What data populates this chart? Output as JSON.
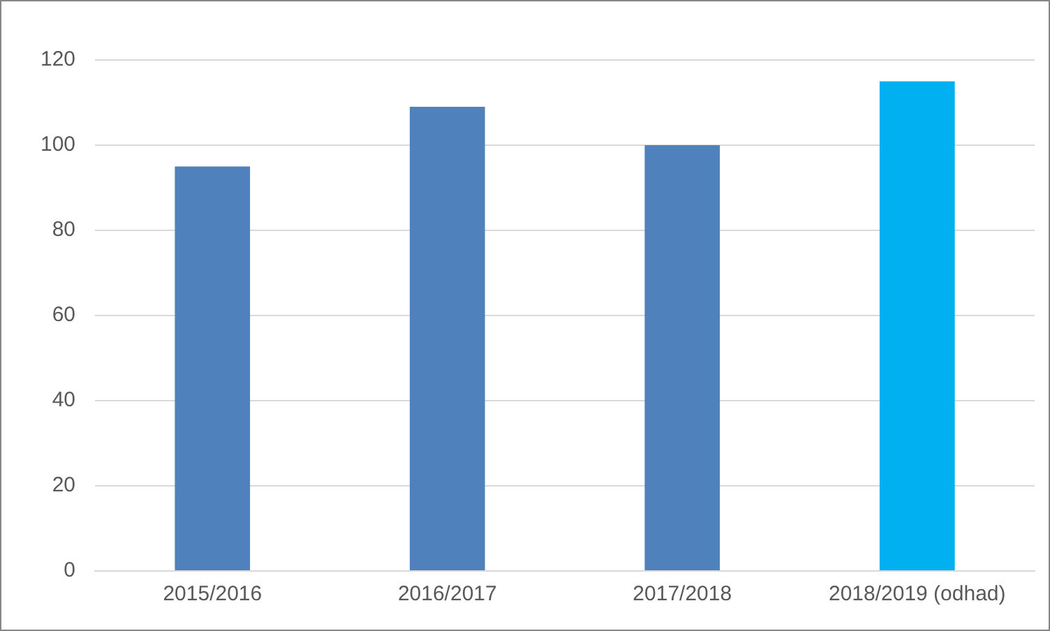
{
  "chart_data": {
    "type": "bar",
    "categories": [
      "2015/2016",
      "2016/2017",
      "2017/2018",
      "2018/2019 (odhad)"
    ],
    "values": [
      95,
      109,
      100,
      115
    ],
    "colors": [
      "#4f81bd",
      "#4f81bd",
      "#4f81bd",
      "#00b0f0"
    ],
    "ylim": [
      0,
      120
    ],
    "yticks": [
      0,
      20,
      40,
      60,
      80,
      100,
      120
    ],
    "grid": "y",
    "legend": false
  }
}
